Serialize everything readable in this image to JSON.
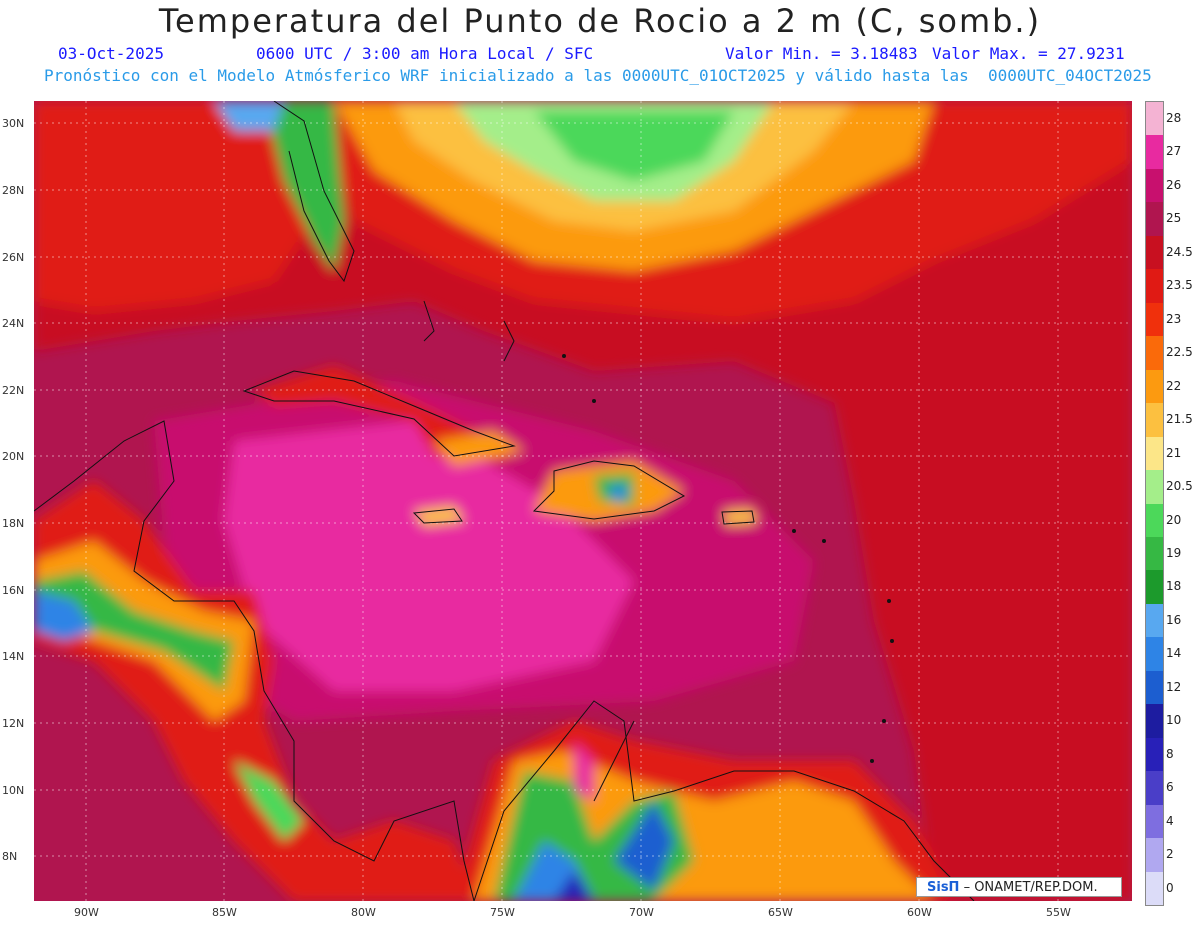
{
  "title": "Temperatura del Punto de Rocio a 2 m (C, somb.)",
  "info": {
    "date": "03-Oct-2025",
    "time": "0600 UTC / 3:00 am Hora Local / SFC",
    "valmin": "Valor Min. = 3.18483",
    "valmax": "Valor Max. = 27.9231",
    "forecast": "Pronóstico con el Modelo Atmósferico WRF inicializado a las 0000UTC_01OCT2025 y válido hasta las  0000UTC_04OCT2025"
  },
  "lat_ticks": [
    "30N",
    "28N",
    "26N",
    "24N",
    "22N",
    "20N",
    "18N",
    "16N",
    "14N",
    "12N",
    "10N",
    "8N"
  ],
  "lon_ticks": [
    "90W",
    "85W",
    "80W",
    "75W",
    "70W",
    "65W",
    "60W",
    "55W"
  ],
  "colorbar": {
    "labels": [
      "28",
      "27",
      "26",
      "25",
      "24.5",
      "23.5",
      "23",
      "22.5",
      "22",
      "21.5",
      "21",
      "20.5",
      "20",
      "19",
      "18",
      "16",
      "14",
      "12",
      "10",
      "8",
      "6",
      "4",
      "2",
      "0"
    ],
    "colors": [
      "#f4b3d3",
      "#e82aa0",
      "#c8106e",
      "#b0154f",
      "#c81020",
      "#e01a14",
      "#f0300c",
      "#fa6a0a",
      "#fc9a10",
      "#fcc040",
      "#fce688",
      "#a4ee8a",
      "#4cd85a",
      "#36b844",
      "#1c9a2c",
      "#58a8f0",
      "#2e84e6",
      "#1c5ed0",
      "#1d1ca0",
      "#2820b8",
      "#4a3ec8",
      "#7e6ee0",
      "#b0a8f0",
      "#dcdcf8"
    ]
  },
  "credit": {
    "logo": "SisΠ",
    "text": " – ONAMET/REP.DOM."
  }
}
